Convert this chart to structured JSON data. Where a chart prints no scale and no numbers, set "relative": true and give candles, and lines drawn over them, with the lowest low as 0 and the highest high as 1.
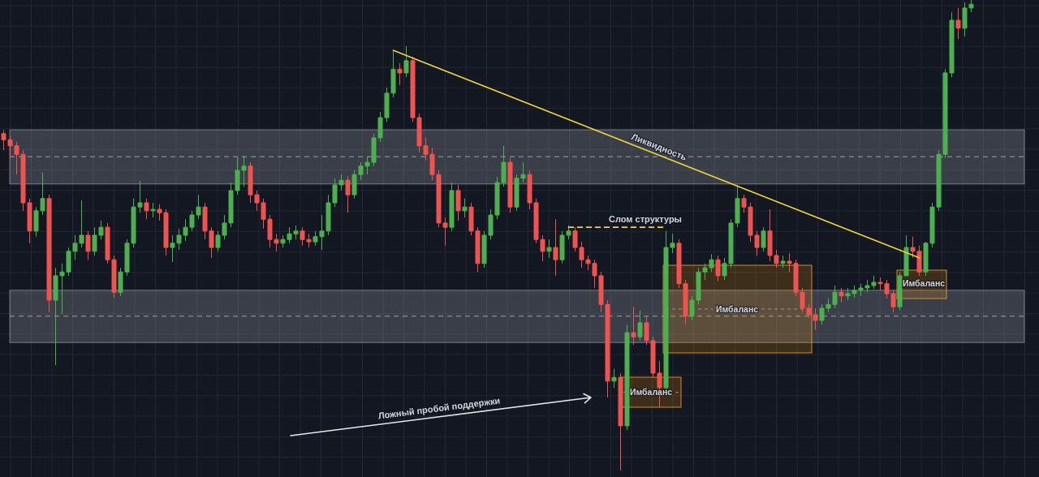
{
  "chart_data": {
    "type": "candlestick",
    "relative": true,
    "grid": true,
    "tick_labels": false,
    "categories": [
      null,
      null,
      null,
      null,
      null,
      null,
      null,
      null,
      null,
      null,
      null,
      null,
      null,
      null,
      null,
      null,
      null,
      null,
      null,
      null,
      null,
      null,
      null,
      null,
      null,
      null,
      null,
      null,
      null,
      null,
      null,
      null,
      null,
      null,
      null,
      null,
      null,
      null,
      null,
      null,
      null,
      null,
      null,
      null,
      null,
      null,
      null,
      null,
      null,
      null,
      null,
      null,
      null,
      null,
      null,
      null,
      null,
      null,
      null,
      null,
      null,
      null,
      null,
      null,
      null,
      null,
      null,
      null,
      null,
      null,
      null,
      null,
      null,
      null,
      null,
      null,
      null,
      null,
      null,
      null,
      null,
      null,
      null,
      null,
      null,
      null,
      null,
      null,
      null,
      null,
      null,
      null,
      null,
      null,
      null,
      null,
      null,
      null,
      null,
      null,
      null,
      null,
      null,
      null,
      null,
      null,
      null,
      null,
      null,
      null,
      null,
      null,
      null,
      null,
      null,
      null,
      null,
      null,
      null,
      null,
      null,
      null,
      null,
      null,
      null,
      null,
      null,
      null,
      null,
      null,
      null,
      null,
      null,
      null,
      null,
      null,
      null,
      null,
      null,
      null,
      null,
      null,
      null,
      null,
      null,
      null,
      null,
      null,
      null,
      null
    ],
    "ohlc": [
      [
        0.716,
        0.724,
        0.681,
        0.703
      ],
      [
        0.703,
        0.71,
        0.664,
        0.69
      ],
      [
        0.69,
        0.698,
        0.629,
        0.672
      ],
      [
        0.672,
        0.681,
        0.552,
        0.569
      ],
      [
        0.569,
        0.578,
        0.483,
        0.509
      ],
      [
        0.509,
        0.56,
        0.497,
        0.552
      ],
      [
        0.552,
        0.633,
        0.543,
        0.578
      ],
      [
        0.578,
        0.586,
        0.336,
        0.362
      ],
      [
        0.362,
        0.431,
        0.224,
        0.414
      ],
      [
        0.414,
        0.44,
        0.333,
        0.422
      ],
      [
        0.422,
        0.474,
        0.414,
        0.466
      ],
      [
        0.466,
        0.5,
        0.448,
        0.483
      ],
      [
        0.483,
        0.574,
        0.474,
        0.5
      ],
      [
        0.5,
        0.509,
        0.448,
        0.466
      ],
      [
        0.466,
        0.517,
        0.457,
        0.5
      ],
      [
        0.5,
        0.531,
        0.491,
        0.517
      ],
      [
        0.517,
        0.526,
        0.44,
        0.448
      ],
      [
        0.448,
        0.457,
        0.367,
        0.379
      ],
      [
        0.379,
        0.431,
        0.371,
        0.422
      ],
      [
        0.422,
        0.491,
        0.414,
        0.483
      ],
      [
        0.483,
        0.578,
        0.474,
        0.56
      ],
      [
        0.56,
        0.616,
        0.548,
        0.569
      ],
      [
        0.569,
        0.578,
        0.534,
        0.552
      ],
      [
        0.552,
        0.569,
        0.538,
        0.555
      ],
      [
        0.555,
        0.566,
        0.531,
        0.548
      ],
      [
        0.548,
        0.555,
        0.457,
        0.474
      ],
      [
        0.474,
        0.5,
        0.443,
        0.483
      ],
      [
        0.483,
        0.514,
        0.469,
        0.5
      ],
      [
        0.5,
        0.534,
        0.488,
        0.517
      ],
      [
        0.517,
        0.552,
        0.509,
        0.543
      ],
      [
        0.543,
        0.586,
        0.534,
        0.56
      ],
      [
        0.56,
        0.569,
        0.491,
        0.509
      ],
      [
        0.509,
        0.517,
        0.452,
        0.474
      ],
      [
        0.474,
        0.509,
        0.466,
        0.5
      ],
      [
        0.5,
        0.543,
        0.491,
        0.526
      ],
      [
        0.526,
        0.612,
        0.517,
        0.595
      ],
      [
        0.595,
        0.667,
        0.586,
        0.638
      ],
      [
        0.638,
        0.669,
        0.603,
        0.647
      ],
      [
        0.647,
        0.655,
        0.569,
        0.586
      ],
      [
        0.586,
        0.595,
        0.552,
        0.569
      ],
      [
        0.569,
        0.578,
        0.514,
        0.534
      ],
      [
        0.534,
        0.543,
        0.474,
        0.491
      ],
      [
        0.491,
        0.503,
        0.466,
        0.483
      ],
      [
        0.483,
        0.5,
        0.474,
        0.491
      ],
      [
        0.491,
        0.517,
        0.483,
        0.503
      ],
      [
        0.503,
        0.521,
        0.491,
        0.509
      ],
      [
        0.509,
        0.517,
        0.478,
        0.491
      ],
      [
        0.491,
        0.503,
        0.474,
        0.486
      ],
      [
        0.486,
        0.509,
        0.478,
        0.497
      ],
      [
        0.497,
        0.543,
        0.469,
        0.509
      ],
      [
        0.509,
        0.586,
        0.5,
        0.569
      ],
      [
        0.569,
        0.621,
        0.56,
        0.607
      ],
      [
        0.607,
        0.629,
        0.595,
        0.617
      ],
      [
        0.617,
        0.626,
        0.548,
        0.586
      ],
      [
        0.586,
        0.638,
        0.578,
        0.629
      ],
      [
        0.629,
        0.655,
        0.617,
        0.647
      ],
      [
        0.647,
        0.667,
        0.629,
        0.655
      ],
      [
        0.655,
        0.716,
        0.647,
        0.707
      ],
      [
        0.707,
        0.762,
        0.698,
        0.75
      ],
      [
        0.75,
        0.814,
        0.741,
        0.802
      ],
      [
        0.802,
        0.893,
        0.793,
        0.853
      ],
      [
        0.853,
        0.866,
        0.819,
        0.845
      ],
      [
        0.845,
        0.902,
        0.836,
        0.871
      ],
      [
        0.871,
        0.879,
        0.741,
        0.75
      ],
      [
        0.75,
        0.759,
        0.676,
        0.69
      ],
      [
        0.69,
        0.707,
        0.659,
        0.672
      ],
      [
        0.672,
        0.686,
        0.617,
        0.629
      ],
      [
        0.629,
        0.638,
        0.517,
        0.526
      ],
      [
        0.526,
        0.538,
        0.478,
        0.517
      ],
      [
        0.517,
        0.612,
        0.509,
        0.595
      ],
      [
        0.595,
        0.607,
        0.531,
        0.552
      ],
      [
        0.552,
        0.578,
        0.538,
        0.56
      ],
      [
        0.56,
        0.569,
        0.5,
        0.509
      ],
      [
        0.509,
        0.517,
        0.422,
        0.44
      ],
      [
        0.44,
        0.509,
        0.431,
        0.5
      ],
      [
        0.5,
        0.555,
        0.491,
        0.543
      ],
      [
        0.543,
        0.624,
        0.534,
        0.612
      ],
      [
        0.612,
        0.69,
        0.603,
        0.655
      ],
      [
        0.655,
        0.664,
        0.548,
        0.56
      ],
      [
        0.56,
        0.629,
        0.552,
        0.621
      ],
      [
        0.621,
        0.655,
        0.612,
        0.629
      ],
      [
        0.629,
        0.638,
        0.555,
        0.569
      ],
      [
        0.569,
        0.578,
        0.483,
        0.491
      ],
      [
        0.491,
        0.5,
        0.445,
        0.466
      ],
      [
        0.466,
        0.491,
        0.452,
        0.474
      ],
      [
        0.474,
        0.534,
        0.414,
        0.448
      ],
      [
        0.448,
        0.509,
        0.44,
        0.5
      ],
      [
        0.5,
        0.521,
        0.491,
        0.509
      ],
      [
        0.509,
        0.517,
        0.466,
        0.474
      ],
      [
        0.474,
        0.486,
        0.431,
        0.448
      ],
      [
        0.448,
        0.457,
        0.426,
        0.44
      ],
      [
        0.44,
        0.448,
        0.388,
        0.414
      ],
      [
        0.414,
        0.422,
        0.336,
        0.353
      ],
      [
        0.353,
        0.362,
        0.155,
        0.19
      ],
      [
        0.19,
        0.216,
        0.176,
        0.198
      ],
      [
        0.198,
        0.207,
        0.0,
        0.095
      ],
      [
        0.095,
        0.31,
        0.086,
        0.293
      ],
      [
        0.293,
        0.348,
        0.267,
        0.284
      ],
      [
        0.284,
        0.34,
        0.276,
        0.314
      ],
      [
        0.314,
        0.328,
        0.267,
        0.276
      ],
      [
        0.276,
        0.284,
        0.198,
        0.207
      ],
      [
        0.207,
        0.233,
        0.134,
        0.176
      ],
      [
        0.176,
        0.509,
        0.169,
        0.474
      ],
      [
        0.474,
        0.503,
        0.462,
        0.483
      ],
      [
        0.483,
        0.491,
        0.388,
        0.397
      ],
      [
        0.397,
        0.405,
        0.31,
        0.328
      ],
      [
        0.328,
        0.371,
        0.319,
        0.362
      ],
      [
        0.362,
        0.431,
        0.353,
        0.422
      ],
      [
        0.422,
        0.44,
        0.405,
        0.431
      ],
      [
        0.431,
        0.46,
        0.422,
        0.448
      ],
      [
        0.448,
        0.457,
        0.402,
        0.414
      ],
      [
        0.414,
        0.452,
        0.405,
        0.44
      ],
      [
        0.44,
        0.534,
        0.431,
        0.526
      ],
      [
        0.526,
        0.607,
        0.517,
        0.578
      ],
      [
        0.578,
        0.586,
        0.548,
        0.56
      ],
      [
        0.56,
        0.569,
        0.486,
        0.5
      ],
      [
        0.5,
        0.509,
        0.457,
        0.474
      ],
      [
        0.474,
        0.517,
        0.466,
        0.509
      ],
      [
        0.509,
        0.555,
        0.445,
        0.457
      ],
      [
        0.457,
        0.469,
        0.431,
        0.44
      ],
      [
        0.44,
        0.457,
        0.431,
        0.445
      ],
      [
        0.445,
        0.462,
        0.422,
        0.44
      ],
      [
        0.44,
        0.448,
        0.371,
        0.379
      ],
      [
        0.379,
        0.388,
        0.336,
        0.345
      ],
      [
        0.345,
        0.353,
        0.324,
        0.331
      ],
      [
        0.331,
        0.345,
        0.298,
        0.319
      ],
      [
        0.319,
        0.353,
        0.31,
        0.345
      ],
      [
        0.345,
        0.366,
        0.336,
        0.353
      ],
      [
        0.353,
        0.393,
        0.345,
        0.379
      ],
      [
        0.379,
        0.388,
        0.357,
        0.371
      ],
      [
        0.371,
        0.388,
        0.362,
        0.376
      ],
      [
        0.376,
        0.393,
        0.367,
        0.383
      ],
      [
        0.383,
        0.397,
        0.371,
        0.388
      ],
      [
        0.388,
        0.405,
        0.379,
        0.393
      ],
      [
        0.393,
        0.414,
        0.386,
        0.4
      ],
      [
        0.4,
        0.41,
        0.383,
        0.397
      ],
      [
        0.397,
        0.405,
        0.366,
        0.376
      ],
      [
        0.376,
        0.384,
        0.336,
        0.348
      ],
      [
        0.348,
        0.422,
        0.341,
        0.414
      ],
      [
        0.414,
        0.5,
        0.414,
        0.474
      ],
      [
        0.474,
        0.497,
        0.452,
        0.466
      ],
      [
        0.466,
        0.478,
        0.414,
        0.422
      ],
      [
        0.422,
        0.486,
        0.414,
        0.483
      ],
      [
        0.483,
        0.569,
        0.474,
        0.56
      ],
      [
        0.56,
        0.681,
        0.552,
        0.672
      ],
      [
        0.672,
        0.853,
        0.664,
        0.845
      ],
      [
        0.845,
        0.974,
        0.836,
        0.957
      ],
      [
        0.957,
        0.983,
        0.917,
        0.94
      ],
      [
        0.94,
        0.995,
        0.922,
        0.983
      ],
      [
        0.983,
        1.0,
        0.974,
        0.991
      ]
    ],
    "colors": [
      "#ef5350",
      "#ef5350",
      "#ef5350",
      "#ef5350",
      "#ef5350",
      "#4caf50",
      "#4caf50",
      "#ef5350",
      "#4caf50",
      "#4caf50",
      "#4caf50",
      "#4caf50",
      "#4caf50",
      "#ef5350",
      "#4caf50",
      "#4caf50",
      "#ef5350",
      "#ef5350",
      "#4caf50",
      "#4caf50",
      "#4caf50",
      "#4caf50",
      "#ef5350",
      "#4caf50",
      "#ef5350",
      "#ef5350",
      "#4caf50",
      "#4caf50",
      "#4caf50",
      "#4caf50",
      "#4caf50",
      "#ef5350",
      "#ef5350",
      "#4caf50",
      "#4caf50",
      "#4caf50",
      "#4caf50",
      "#4caf50",
      "#ef5350",
      "#ef5350",
      "#ef5350",
      "#ef5350",
      "#ef5350",
      "#4caf50",
      "#4caf50",
      "#4caf50",
      "#ef5350",
      "#ef5350",
      "#4caf50",
      "#4caf50",
      "#4caf50",
      "#4caf50",
      "#4caf50",
      "#ef5350",
      "#4caf50",
      "#4caf50",
      "#4caf50",
      "#4caf50",
      "#4caf50",
      "#4caf50",
      "#4caf50",
      "#ef5350",
      "#4caf50",
      "#ef5350",
      "#ef5350",
      "#ef5350",
      "#ef5350",
      "#ef5350",
      "#ef5350",
      "#4caf50",
      "#ef5350",
      "#4caf50",
      "#ef5350",
      "#ef5350",
      "#4caf50",
      "#4caf50",
      "#4caf50",
      "#4caf50",
      "#ef5350",
      "#4caf50",
      "#4caf50",
      "#ef5350",
      "#ef5350",
      "#ef5350",
      "#4caf50",
      "#ef5350",
      "#4caf50",
      "#4caf50",
      "#ef5350",
      "#ef5350",
      "#ef5350",
      "#ef5350",
      "#ef5350",
      "#ef5350",
      "#4caf50",
      "#ef5350",
      "#4caf50",
      "#ef5350",
      "#4caf50",
      "#ef5350",
      "#ef5350",
      "#ef5350",
      "#4caf50",
      "#4caf50",
      "#ef5350",
      "#ef5350",
      "#4caf50",
      "#4caf50",
      "#4caf50",
      "#4caf50",
      "#ef5350",
      "#4caf50",
      "#4caf50",
      "#4caf50",
      "#ef5350",
      "#ef5350",
      "#ef5350",
      "#4caf50",
      "#ef5350",
      "#ef5350",
      "#4caf50",
      "#ef5350",
      "#ef5350",
      "#ef5350",
      "#ef5350",
      "#ef5350",
      "#4caf50",
      "#4caf50",
      "#4caf50",
      "#ef5350",
      "#4caf50",
      "#4caf50",
      "#4caf50",
      "#4caf50",
      "#4caf50",
      "#ef5350",
      "#ef5350",
      "#ef5350",
      "#4caf50",
      "#4caf50",
      "#ef5350",
      "#ef5350",
      "#4caf50",
      "#4caf50",
      "#4caf50",
      "#4caf50",
      "#4caf50",
      "#ef5350",
      "#4caf50",
      "#4caf50"
    ],
    "series": [
      {
        "type": "line",
        "color": "#f0d43a",
        "values": [
          null,
          null,
          null,
          null,
          null,
          null,
          null,
          null,
          null,
          null,
          null,
          null,
          null,
          null,
          null,
          null,
          null,
          null,
          null,
          null,
          null,
          null,
          null,
          null,
          null,
          null,
          null,
          null,
          null,
          null,
          null,
          null,
          null,
          null,
          null,
          null,
          null,
          null,
          null,
          null,
          null,
          null,
          null,
          null,
          null,
          null,
          null,
          null,
          null,
          null,
          null,
          null,
          null,
          null,
          null,
          null,
          null,
          null,
          null,
          null,
          0.893,
          null,
          null,
          null,
          null,
          null,
          null,
          null,
          null,
          null,
          null,
          null,
          null,
          null,
          null,
          null,
          null,
          null,
          null,
          null,
          null,
          null,
          null,
          null,
          null,
          null,
          null,
          null,
          null,
          null,
          null,
          null,
          null,
          null,
          null,
          null,
          null,
          null,
          null,
          null,
          null,
          null,
          null,
          null,
          null,
          null,
          null,
          null,
          null,
          null,
          null,
          null,
          null,
          null,
          null,
          null,
          null,
          null,
          null,
          null,
          null,
          null,
          null,
          null,
          null,
          null,
          null,
          null,
          null,
          null,
          null,
          null,
          null,
          null,
          null,
          null,
          null,
          null,
          null,
          null,
          null,
          0.452,
          null,
          null,
          null,
          null,
          null,
          null,
          null,
          null
        ]
      },
      {
        "type": "line",
        "color": "#f0d43a",
        "line_style": "dashed",
        "values": [
          null,
          null,
          null,
          null,
          null,
          null,
          null,
          null,
          null,
          null,
          null,
          null,
          null,
          null,
          null,
          null,
          null,
          null,
          null,
          null,
          null,
          null,
          null,
          null,
          null,
          null,
          null,
          null,
          null,
          null,
          null,
          null,
          null,
          null,
          null,
          null,
          null,
          null,
          null,
          null,
          null,
          null,
          null,
          null,
          null,
          null,
          null,
          null,
          null,
          null,
          null,
          null,
          null,
          null,
          null,
          null,
          null,
          null,
          null,
          null,
          null,
          null,
          null,
          null,
          null,
          null,
          null,
          null,
          null,
          null,
          null,
          null,
          null,
          null,
          null,
          null,
          null,
          null,
          null,
          null,
          null,
          null,
          null,
          null,
          null,
          null,
          null,
          0.517,
          null,
          null,
          null,
          null,
          null,
          null,
          null,
          null,
          null,
          null,
          null,
          null,
          null,
          null,
          0.517,
          null,
          null,
          null,
          null,
          null,
          null,
          null,
          null,
          null,
          null,
          null,
          null,
          null,
          null,
          null,
          null,
          null,
          null,
          null,
          null,
          null,
          null,
          null,
          null,
          null,
          null,
          null,
          null,
          null,
          null,
          null,
          null,
          null,
          null,
          null,
          null,
          null,
          null,
          null,
          null,
          null,
          null,
          null,
          null,
          null,
          null,
          null
        ]
      }
    ],
    "bands": [
      {
        "axis": "y",
        "from": 0.609,
        "to": 0.724,
        "color": "#9598a1"
      },
      {
        "axis": "y",
        "from": 0.272,
        "to": 0.383,
        "color": "#9598a1"
      }
    ],
    "ref_lines": [
      {
        "axis": "y",
        "value": 0.667,
        "color": "#b2b5be",
        "line_style": "dashed"
      },
      {
        "axis": "y",
        "value": 0.328,
        "color": "#b2b5be",
        "line_style": "dashed"
      }
    ],
    "annotations": [
      "Ликвидность",
      "Слом структуры",
      "Имбаланс",
      "Имбаланс",
      "Имбаланс",
      "Ложный пробой поддержки"
    ]
  }
}
